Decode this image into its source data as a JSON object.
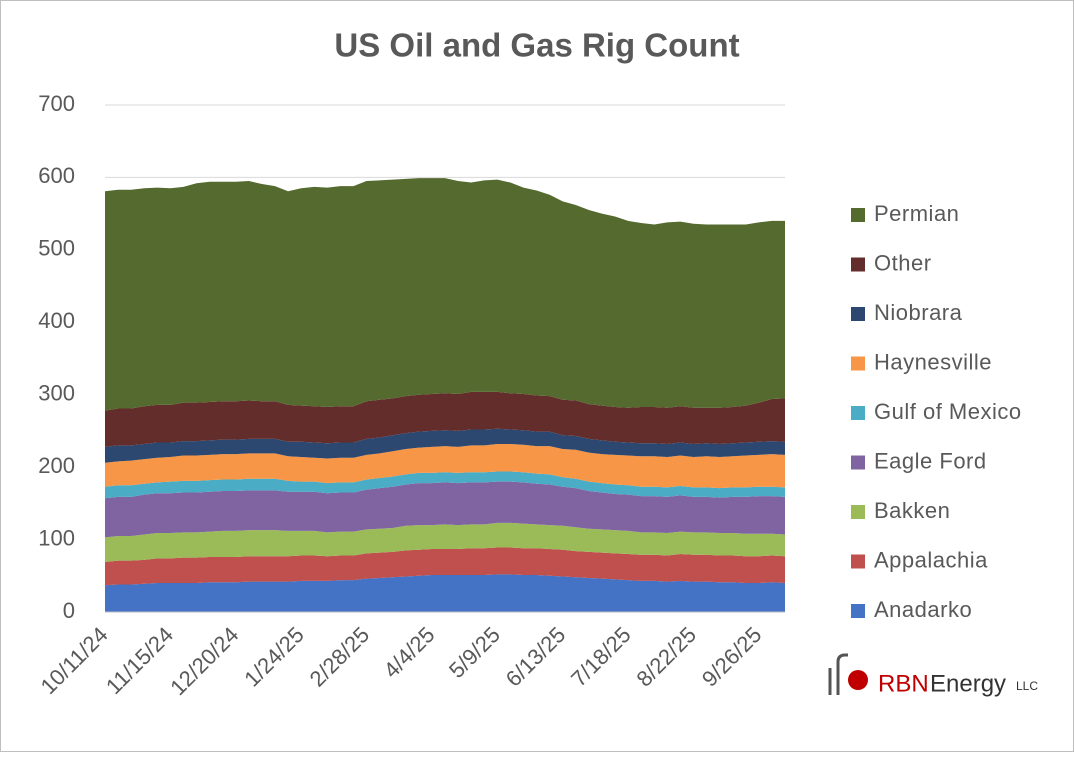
{
  "chart_data": {
    "type": "stacked_area",
    "title": "US Oil and Gas Rig Count",
    "categories": [
      "10/11/24",
      null,
      null,
      null,
      null,
      "11/15/24",
      null,
      null,
      null,
      null,
      "12/20/24",
      null,
      null,
      null,
      null,
      "1/24/25",
      null,
      null,
      null,
      null,
      "2/28/25",
      null,
      null,
      null,
      null,
      "4/4/25",
      null,
      null,
      null,
      null,
      "5/9/25",
      null,
      null,
      null,
      null,
      "6/13/25",
      null,
      null,
      null,
      null,
      "7/18/25",
      null,
      null,
      null,
      null,
      "8/22/25",
      null,
      null,
      null,
      null,
      "9/26/25",
      null,
      null
    ],
    "ylim": [
      0,
      700
    ],
    "yticks": [
      0,
      100,
      200,
      300,
      400,
      500,
      600,
      700
    ],
    "grid": true,
    "legend": "right",
    "series": [
      {
        "name": "Anadarko",
        "color": "#4472c4",
        "values": [
          37,
          38,
          38,
          39,
          40,
          40,
          40,
          40,
          41,
          41,
          41,
          42,
          42,
          42,
          42,
          43,
          43,
          43,
          44,
          44,
          46,
          47,
          48,
          49,
          50,
          51,
          51,
          51,
          51,
          51,
          52,
          52,
          51,
          51,
          50,
          49,
          48,
          47,
          46,
          45,
          44,
          43,
          43,
          42,
          43,
          42,
          42,
          41,
          41,
          40,
          40,
          41,
          40
        ]
      },
      {
        "name": "Appalachia",
        "color": "#c0504d",
        "values": [
          32,
          33,
          33,
          33,
          34,
          34,
          35,
          35,
          35,
          35,
          35,
          35,
          35,
          35,
          35,
          35,
          35,
          34,
          34,
          34,
          35,
          35,
          35,
          36,
          36,
          36,
          36,
          36,
          37,
          37,
          37,
          37,
          37,
          37,
          37,
          37,
          36,
          36,
          36,
          36,
          36,
          36,
          36,
          36,
          37,
          37,
          37,
          37,
          37,
          37,
          37,
          37,
          37
        ]
      },
      {
        "name": "Bakken",
        "color": "#9bbb59",
        "values": [
          34,
          34,
          34,
          35,
          35,
          35,
          35,
          35,
          35,
          36,
          36,
          36,
          36,
          36,
          35,
          34,
          34,
          33,
          33,
          33,
          33,
          33,
          33,
          34,
          34,
          33,
          34,
          33,
          33,
          33,
          34,
          34,
          34,
          33,
          33,
          33,
          33,
          32,
          32,
          32,
          32,
          31,
          31,
          31,
          31,
          31,
          31,
          31,
          31,
          31,
          31,
          30,
          30
        ]
      },
      {
        "name": "Eagle Ford",
        "color": "#8064a2",
        "values": [
          54,
          54,
          54,
          55,
          55,
          55,
          55,
          55,
          55,
          55,
          55,
          55,
          55,
          55,
          54,
          54,
          54,
          54,
          54,
          54,
          55,
          56,
          57,
          57,
          58,
          58,
          58,
          58,
          58,
          58,
          57,
          57,
          57,
          56,
          56,
          54,
          54,
          52,
          51,
          50,
          50,
          50,
          50,
          50,
          50,
          49,
          49,
          49,
          50,
          51,
          52,
          52,
          52
        ]
      },
      {
        "name": "Gulf of Mexico",
        "color": "#4bacc6",
        "values": [
          16,
          16,
          16,
          15,
          15,
          16,
          16,
          16,
          16,
          16,
          16,
          16,
          16,
          16,
          15,
          14,
          14,
          14,
          14,
          14,
          14,
          14,
          14,
          14,
          14,
          14,
          14,
          14,
          14,
          14,
          14,
          14,
          14,
          14,
          14,
          13,
          13,
          13,
          13,
          13,
          13,
          13,
          13,
          13,
          13,
          13,
          13,
          13,
          13,
          13,
          13,
          13,
          13
        ]
      },
      {
        "name": "Haynesville",
        "color": "#f79646",
        "values": [
          33,
          33,
          34,
          34,
          34,
          34,
          35,
          35,
          35,
          35,
          35,
          35,
          35,
          35,
          34,
          34,
          33,
          34,
          34,
          34,
          34,
          34,
          35,
          35,
          35,
          36,
          36,
          36,
          37,
          37,
          38,
          38,
          38,
          38,
          39,
          39,
          40,
          40,
          40,
          41,
          41,
          42,
          42,
          42,
          42,
          42,
          43,
          43,
          43,
          44,
          44,
          45,
          45
        ]
      },
      {
        "name": "Niobrara",
        "color": "#2c4770",
        "values": [
          22,
          22,
          21,
          21,
          21,
          20,
          20,
          20,
          20,
          20,
          20,
          20,
          20,
          20,
          20,
          21,
          21,
          21,
          21,
          21,
          22,
          22,
          22,
          22,
          22,
          22,
          22,
          22,
          22,
          22,
          21,
          20,
          20,
          20,
          20,
          19,
          19,
          19,
          19,
          18,
          18,
          18,
          18,
          18,
          18,
          18,
          18,
          18,
          18,
          18,
          18,
          18,
          18
        ]
      },
      {
        "name": "Other",
        "color": "#632d2b",
        "values": [
          50,
          51,
          51,
          52,
          52,
          52,
          53,
          53,
          53,
          53,
          53,
          53,
          52,
          52,
          51,
          50,
          50,
          50,
          50,
          50,
          52,
          52,
          51,
          51,
          51,
          51,
          51,
          51,
          52,
          52,
          51,
          50,
          50,
          50,
          49,
          49,
          49,
          48,
          48,
          48,
          48,
          50,
          50,
          50,
          50,
          50,
          49,
          50,
          50,
          51,
          54,
          58,
          60
        ]
      },
      {
        "name": "Permian",
        "color": "#546a2f",
        "values": [
          303,
          302,
          302,
          301,
          300,
          299,
          298,
          303,
          304,
          303,
          303,
          303,
          300,
          297,
          295,
          300,
          303,
          303,
          304,
          304,
          304,
          303,
          302,
          300,
          299,
          298,
          297,
          294,
          289,
          292,
          293,
          291,
          285,
          283,
          278,
          274,
          270,
          268,
          265,
          263,
          258,
          254,
          252,
          256,
          255,
          254,
          253,
          253,
          252,
          250,
          249,
          246,
          245
        ]
      }
    ]
  },
  "logo": {
    "brand": "RBN",
    "name": "Energy",
    "suffix": "LLC"
  }
}
